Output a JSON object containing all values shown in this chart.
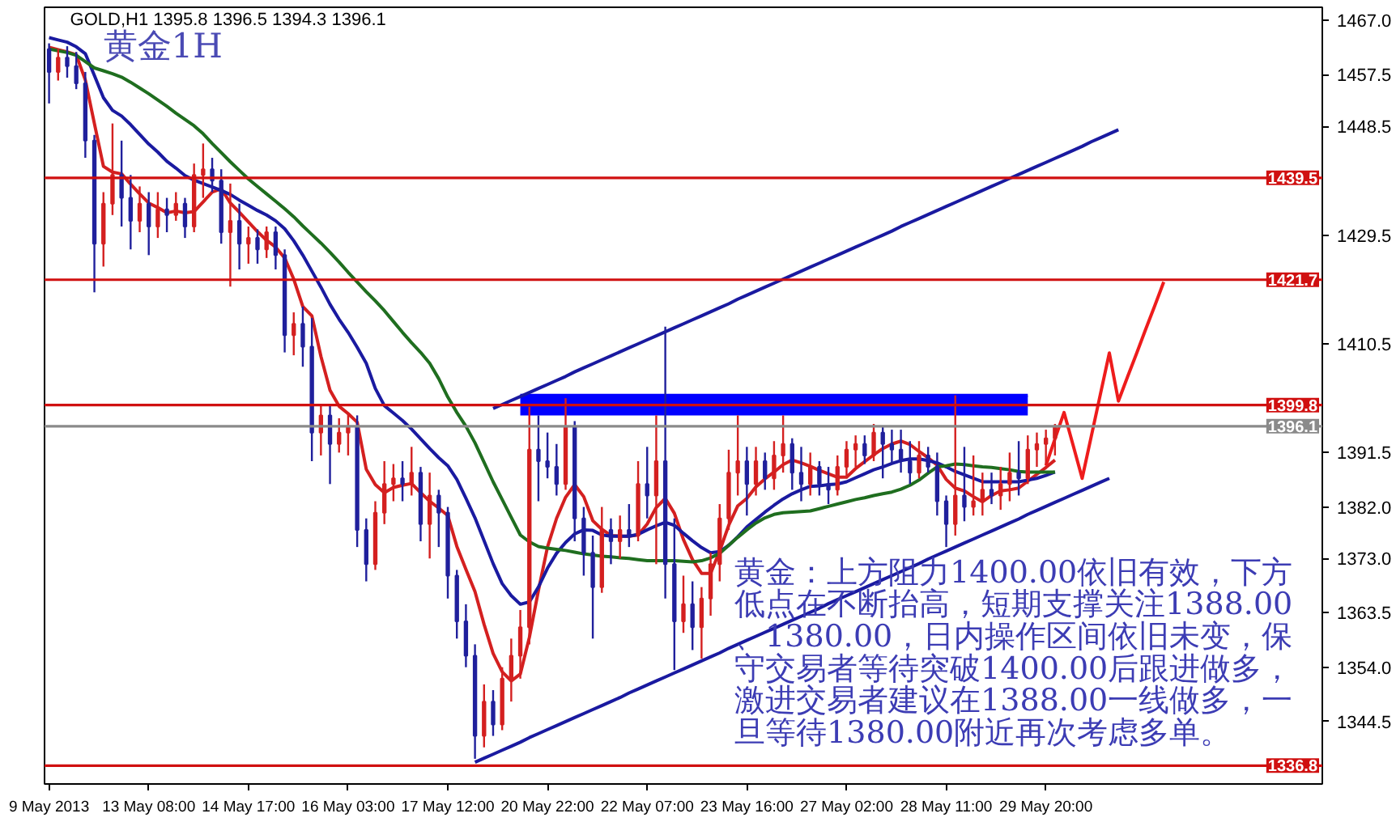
{
  "chart_data": {
    "type": "candlestick",
    "title": "黄金1H",
    "subtitle": "GOLD,H1 1395.8 1396.5 1394.3 1396.1",
    "categories": [
      "9 May 2013",
      null,
      null,
      null,
      null,
      null,
      null,
      null,
      null,
      null,
      null,
      "13 May 08:00",
      null,
      null,
      null,
      null,
      null,
      null,
      null,
      null,
      null,
      null,
      "14 May 17:00",
      null,
      null,
      null,
      null,
      null,
      null,
      null,
      null,
      null,
      null,
      "16 May 03:00",
      null,
      null,
      null,
      null,
      null,
      null,
      null,
      null,
      null,
      null,
      "17 May 12:00",
      null,
      null,
      null,
      null,
      null,
      null,
      null,
      null,
      null,
      null,
      "20 May 22:00",
      null,
      null,
      null,
      null,
      null,
      null,
      null,
      null,
      null,
      null,
      "22 May 07:00",
      null,
      null,
      null,
      null,
      null,
      null,
      null,
      null,
      null,
      null,
      "23 May 16:00",
      null,
      null,
      null,
      null,
      null,
      null,
      null,
      null,
      null,
      null,
      "27 May 02:00",
      null,
      null,
      null,
      null,
      null,
      null,
      null,
      null,
      null,
      null,
      "28 May 11:00",
      null,
      null,
      null,
      null,
      null,
      null,
      null,
      null,
      null,
      null,
      "29 May 20:00",
      null,
      null,
      null,
      null,
      null,
      null,
      null,
      null,
      null,
      null,
      null,
      null,
      null,
      null,
      null,
      null,
      null,
      null,
      null,
      null,
      null,
      null,
      null,
      null,
      null,
      null,
      null,
      null,
      null,
      null
    ],
    "ohlc": [
      [
        1462,
        1463,
        1452.5,
        1458
      ],
      [
        1458,
        1462,
        1456.5,
        1460.5
      ],
      [
        1460.5,
        1462.5,
        1457,
        1459
      ],
      [
        1459,
        1461.5,
        1455,
        1456
      ],
      [
        1456,
        1458,
        1443,
        1446
      ],
      [
        1446,
        1447,
        1419.5,
        1428
      ],
      [
        1428,
        1437,
        1424,
        1435
      ],
      [
        1435,
        1449,
        1433,
        1440
      ],
      [
        1440,
        1446,
        1431,
        1436
      ],
      [
        1436,
        1440,
        1427,
        1432
      ],
      [
        1432,
        1438,
        1430,
        1435
      ],
      [
        1435,
        1437,
        1426,
        1431
      ],
      [
        1431,
        1437,
        1429,
        1434
      ],
      [
        1434,
        1436,
        1430,
        1433
      ],
      [
        1433,
        1437,
        1432,
        1435
      ],
      [
        1435,
        1436,
        1429,
        1431
      ],
      [
        1431,
        1442,
        1430,
        1440
      ],
      [
        1440,
        1445.5,
        1436,
        1441
      ],
      [
        1441,
        1443,
        1437,
        1439
      ],
      [
        1439,
        1441,
        1428,
        1430
      ],
      [
        1430,
        1438.5,
        1420.5,
        1432
      ],
      [
        1432,
        1435,
        1423.5,
        1428
      ],
      [
        1428,
        1431,
        1424.5,
        1429
      ],
      [
        1429,
        1430.5,
        1424.5,
        1427
      ],
      [
        1427,
        1431,
        1425.5,
        1430
      ],
      [
        1430,
        1431,
        1423.5,
        1426
      ],
      [
        1426,
        1427,
        1409,
        1412
      ],
      [
        1412,
        1416,
        1408.5,
        1414
      ],
      [
        1414,
        1417,
        1406.5,
        1410
      ],
      [
        1410,
        1415,
        1390,
        1395
      ],
      [
        1395,
        1400,
        1391,
        1398
      ],
      [
        1398,
        1400,
        1386,
        1393
      ],
      [
        1393,
        1397.5,
        1391.5,
        1395
      ],
      [
        1395,
        1398.5,
        1391,
        1396
      ],
      [
        1396,
        1398,
        1375,
        1378
      ],
      [
        1378,
        1380,
        1369,
        1372
      ],
      [
        1372,
        1383,
        1371,
        1381
      ],
      [
        1381,
        1390,
        1379,
        1386
      ],
      [
        1386,
        1389.5,
        1383,
        1387
      ],
      [
        1387,
        1390,
        1383,
        1386
      ],
      [
        1386,
        1392.5,
        1384,
        1388
      ],
      [
        1388,
        1389,
        1376,
        1379
      ],
      [
        1379,
        1388,
        1373,
        1384
      ],
      [
        1384,
        1385,
        1375,
        1381
      ],
      [
        1381,
        1382,
        1366,
        1370
      ],
      [
        1370,
        1371,
        1359,
        1362
      ],
      [
        1362,
        1365,
        1354,
        1356
      ],
      [
        1356,
        1358,
        1338,
        1342
      ],
      [
        1342,
        1351,
        1340,
        1348
      ],
      [
        1348,
        1350,
        1342,
        1344
      ],
      [
        1344,
        1354,
        1343,
        1352
      ],
      [
        1352,
        1359,
        1348,
        1356
      ],
      [
        1356,
        1364,
        1352,
        1361
      ],
      [
        1361,
        1399.5,
        1358,
        1392
      ],
      [
        1392,
        1398,
        1383,
        1390
      ],
      [
        1390,
        1395,
        1387,
        1389
      ],
      [
        1389,
        1393,
        1384,
        1386
      ],
      [
        1386,
        1401,
        1385,
        1396
      ],
      [
        1396,
        1397,
        1376,
        1380
      ],
      [
        1380,
        1382,
        1370,
        1374
      ],
      [
        1374,
        1377,
        1359,
        1368
      ],
      [
        1368,
        1382,
        1367,
        1378
      ],
      [
        1378,
        1380,
        1372,
        1376
      ],
      [
        1376,
        1380.5,
        1373,
        1378
      ],
      [
        1378,
        1382.5,
        1375,
        1377
      ],
      [
        1377,
        1390,
        1376,
        1386
      ],
      [
        1386,
        1392.5,
        1380,
        1384
      ],
      [
        1384,
        1398,
        1372,
        1390
      ],
      [
        1390,
        1413.5,
        1366,
        1372
      ],
      [
        1372,
        1380,
        1353.5,
        1362
      ],
      [
        1362,
        1370,
        1360,
        1365
      ],
      [
        1365,
        1369,
        1357,
        1361
      ],
      [
        1361,
        1368,
        1355.5,
        1366
      ],
      [
        1366,
        1374,
        1363,
        1372
      ],
      [
        1372,
        1382.5,
        1369,
        1380
      ],
      [
        1380,
        1392,
        1378,
        1388
      ],
      [
        1388,
        1398,
        1384,
        1390
      ],
      [
        1390,
        1392.5,
        1380.5,
        1386
      ],
      [
        1386,
        1392.5,
        1384,
        1390
      ],
      [
        1390,
        1391.5,
        1385,
        1387
      ],
      [
        1387,
        1393.5,
        1385,
        1391
      ],
      [
        1391,
        1398,
        1388,
        1393
      ],
      [
        1393,
        1394,
        1385,
        1388
      ],
      [
        1388,
        1392.5,
        1383,
        1386
      ],
      [
        1386,
        1391.5,
        1384,
        1389
      ],
      [
        1389,
        1390,
        1384,
        1386
      ],
      [
        1386,
        1389,
        1382.5,
        1385
      ],
      [
        1385,
        1391,
        1384,
        1389
      ],
      [
        1389,
        1393.5,
        1387,
        1392
      ],
      [
        1392,
        1394.5,
        1389,
        1393
      ],
      [
        1393,
        1394.5,
        1389.5,
        1391
      ],
      [
        1391,
        1396.5,
        1390,
        1395
      ],
      [
        1395,
        1396,
        1387,
        1393
      ],
      [
        1393,
        1395.5,
        1389.5,
        1392
      ],
      [
        1392,
        1395.5,
        1388,
        1390
      ],
      [
        1390,
        1393.5,
        1386,
        1388
      ],
      [
        1388,
        1393.5,
        1387,
        1391
      ],
      [
        1391,
        1392.5,
        1388,
        1389
      ],
      [
        1389,
        1391.5,
        1380.5,
        1383
      ],
      [
        1383,
        1384,
        1375,
        1379
      ],
      [
        1379,
        1401.5,
        1377,
        1384
      ],
      [
        1384,
        1392.5,
        1379.5,
        1382
      ],
      [
        1382,
        1391,
        1380.5,
        1383
      ],
      [
        1383,
        1388,
        1380.5,
        1385
      ],
      [
        1385,
        1388,
        1382.5,
        1384
      ],
      [
        1384,
        1389,
        1381.5,
        1386
      ],
      [
        1386,
        1391.5,
        1383,
        1388
      ],
      [
        1388,
        1393.5,
        1384,
        1387
      ],
      [
        1387,
        1394.5,
        1386,
        1392
      ],
      [
        1392,
        1395,
        1389,
        1393
      ],
      [
        1393,
        1395.5,
        1389.5,
        1394
      ],
      [
        1394,
        1396.5,
        1391,
        1396.1
      ],
      null,
      null,
      null,
      null,
      null,
      null,
      null,
      null,
      null,
      null,
      null,
      null,
      null,
      null,
      null,
      null,
      null,
      null,
      null,
      null,
      null,
      null,
      null,
      null,
      null,
      null,
      null,
      null,
      null
    ],
    "colors": [
      "#20209c",
      "#d42020",
      "#20209c",
      "#20209c",
      "#20209c",
      "#20209c",
      "#d42020",
      "#d42020",
      "#20209c",
      "#20209c",
      "#d42020",
      "#20209c",
      "#d42020",
      "#20209c",
      "#d42020",
      "#20209c",
      "#d42020",
      "#d42020",
      "#20209c",
      "#20209c",
      "#d42020",
      "#20209c",
      "#d42020",
      "#20209c",
      "#d42020",
      "#20209c",
      "#20209c",
      "#d42020",
      "#20209c",
      "#20209c",
      "#d42020",
      "#20209c",
      "#d42020",
      "#d42020",
      "#20209c",
      "#20209c",
      "#d42020",
      "#d42020",
      "#d42020",
      "#20209c",
      "#d42020",
      "#20209c",
      "#d42020",
      "#20209c",
      "#20209c",
      "#20209c",
      "#20209c",
      "#20209c",
      "#d42020",
      "#20209c",
      "#d42020",
      "#d42020",
      "#d42020",
      "#d42020",
      "#20209c",
      "#20209c",
      "#20209c",
      "#d42020",
      "#20209c",
      "#20209c",
      "#20209c",
      "#d42020",
      "#20209c",
      "#d42020",
      "#20209c",
      "#d42020",
      "#20209c",
      "#d42020",
      "#20209c",
      "#20209c",
      "#d42020",
      "#20209c",
      "#d42020",
      "#d42020",
      "#d42020",
      "#d42020",
      "#d42020",
      "#20209c",
      "#d42020",
      "#20209c",
      "#d42020",
      "#d42020",
      "#20209c",
      "#20209c",
      "#d42020",
      "#20209c",
      "#20209c",
      "#d42020",
      "#d42020",
      "#d42020",
      "#20209c",
      "#d42020",
      "#20209c",
      "#20209c",
      "#20209c",
      "#20209c",
      "#d42020",
      "#20209c",
      "#20209c",
      "#20209c",
      "#d42020",
      "#20209c",
      "#d42020",
      "#d42020",
      "#20209c",
      "#d42020",
      "#d42020",
      "#20209c",
      "#d42020",
      "#d42020",
      "#d42020",
      "#d42020",
      null,
      null,
      null,
      null,
      null,
      null,
      null,
      null,
      null,
      null,
      null,
      null,
      null,
      null,
      null,
      null,
      null,
      null,
      null,
      null,
      null,
      null,
      null,
      null,
      null,
      null,
      null,
      null,
      null
    ],
    "ylim": [
      1333.6,
      1469.3
    ],
    "yticks": [
      {
        "value": 1467,
        "label": "1467.0"
      },
      1457.5,
      1448.5,
      1429.5,
      1410.5,
      1391.5,
      {
        "value": 1382,
        "label": "1382.0"
      },
      {
        "value": 1373,
        "label": "1373.0"
      },
      1363.5,
      {
        "value": 1354,
        "label": "1354.0"
      },
      1344.5
    ],
    "series": [
      {
        "type": "line",
        "color": "#0000ff",
        "values": [
          null,
          null,
          null,
          null,
          null,
          null,
          null,
          null,
          null,
          null,
          null,
          null,
          null,
          null,
          null,
          null,
          null,
          null,
          null,
          null,
          null,
          null,
          null,
          null,
          null,
          null,
          null,
          null,
          null,
          null,
          null,
          null,
          null,
          null,
          null,
          null,
          null,
          null,
          null,
          null,
          null,
          null,
          null,
          null,
          null,
          null,
          null,
          null,
          null,
          null,
          null,
          null,
          1401.5,
          1401.5,
          1401.5,
          1401.5,
          1401.5,
          1401.5,
          1401.5,
          1401.5,
          1401.5,
          1401.5,
          1401.5,
          1401.5,
          1401.5,
          1401.5,
          1401.5,
          1401.5,
          1401.5,
          1401.5,
          1401.5,
          1401.5,
          1401.5,
          1401.5,
          1401.5,
          1401.5,
          1401.5,
          1401.5,
          1401.5,
          1401.5,
          1401.5,
          1401.5,
          1401.5,
          1401.5,
          1401.5,
          1401.5,
          1401.5,
          1401.5,
          1401.5,
          1401.5,
          1401.5,
          1401.5,
          1401.5,
          1401.5,
          1401.5,
          1401.5,
          1401.5,
          1401.5,
          1401.5,
          1401.5,
          1401.5,
          1401.5,
          1401.5,
          1401.5,
          1401.5,
          1401.5,
          1401.5,
          1401.5,
          1401.5,
          null,
          null,
          null,
          null,
          null,
          null,
          null,
          null,
          null,
          null,
          null,
          null,
          null,
          null,
          null,
          null,
          null,
          null,
          null,
          null,
          null,
          null,
          null,
          null,
          null,
          null,
          null,
          null,
          null,
          null,
          null,
          null
        ],
        "lower": [
          null,
          null,
          null,
          null,
          null,
          null,
          null,
          null,
          null,
          null,
          null,
          null,
          null,
          null,
          null,
          null,
          null,
          null,
          null,
          null,
          null,
          null,
          null,
          null,
          null,
          null,
          null,
          null,
          null,
          null,
          null,
          null,
          null,
          null,
          null,
          null,
          null,
          null,
          null,
          null,
          null,
          null,
          null,
          null,
          null,
          null,
          null,
          null,
          null,
          null,
          null,
          null,
          1398,
          1398,
          1398,
          1398,
          1398,
          1398,
          1398,
          1398,
          1398,
          1398,
          1398,
          1398,
          1398,
          1398,
          1398,
          1398,
          1398,
          1398,
          1398,
          1398,
          1398,
          1398,
          1398,
          1398,
          1398,
          1398,
          1398,
          1398,
          1398,
          1398,
          1398,
          1398,
          1398,
          1398,
          1398,
          1398,
          1398,
          1398,
          1398,
          1398,
          1398,
          1398,
          1398,
          1398,
          1398,
          1398,
          1398,
          1398,
          1398,
          1398,
          1398,
          1398,
          1398,
          1398,
          1398,
          1398,
          1398,
          null,
          null,
          null,
          null,
          null,
          null,
          null,
          null,
          null,
          null,
          null,
          null,
          null,
          null,
          null,
          null,
          null,
          null,
          null,
          null,
          null,
          null,
          null,
          null,
          null,
          null,
          null,
          null,
          null,
          null,
          null,
          null
        ],
        "upper": [
          null,
          null,
          null,
          null,
          null,
          null,
          null,
          null,
          null,
          null,
          null,
          null,
          null,
          null,
          null,
          null,
          null,
          null,
          null,
          null,
          null,
          null,
          null,
          null,
          null,
          null,
          null,
          null,
          null,
          null,
          null,
          null,
          null,
          null,
          null,
          null,
          null,
          null,
          null,
          null,
          null,
          null,
          null,
          null,
          null,
          null,
          null,
          null,
          null,
          null,
          null,
          null,
          1401.5,
          1401.5,
          1401.5,
          1401.5,
          1401.5,
          1401.5,
          1401.5,
          1401.5,
          1401.5,
          1401.5,
          1401.5,
          1401.5,
          1401.5,
          1401.5,
          1401.5,
          1401.5,
          1401.5,
          1401.5,
          1401.5,
          1401.5,
          1401.5,
          1401.5,
          1401.5,
          1401.5,
          1401.5,
          1401.5,
          1401.5,
          1401.5,
          1401.5,
          1401.5,
          1401.5,
          1401.5,
          1401.5,
          1401.5,
          1401.5,
          1401.5,
          1401.5,
          1401.5,
          1401.5,
          1401.5,
          1401.5,
          1401.5,
          1401.5,
          1401.5,
          1401.5,
          1401.5,
          1401.5,
          1401.5,
          1401.5,
          1401.5,
          1401.5,
          1401.5,
          1401.5,
          1401.5,
          1401.5,
          1401.5,
          1401.5,
          null,
          null,
          null,
          null,
          null,
          null,
          null,
          null,
          null,
          null,
          null,
          null,
          null,
          null,
          null,
          null,
          null,
          null,
          null,
          null,
          null,
          null,
          null,
          null,
          null,
          null,
          null,
          null,
          null,
          null,
          null,
          null
        ]
      },
      {
        "type": "line",
        "color": "#d42020",
        "values": [
          1462.3,
          1461.9,
          1461.5,
          1461.0,
          1456.6,
          1449.0,
          1441.5,
          1440.5,
          1440.2,
          1438.4,
          1436.7,
          1435.1,
          1434.3,
          1433.4,
          1433.7,
          1433.4,
          1433.6,
          1435.3,
          1437.0,
          1437.6,
          1435.1,
          1433.5,
          1431.8,
          1430.1,
          1428.6,
          1427.4,
          1425.5,
          1421.8,
          1417.0,
          1415.4,
          1408.3,
          1402.4,
          1399.6,
          1398.3,
          1396.8,
          1388.6,
          1385.9,
          1384.5,
          1385.4,
          1385.8,
          1386.1,
          1384.5,
          1383.0,
          1381.8,
          1380.5,
          1375.1,
          1371.1,
          1367.2,
          1361.5,
          1356.4,
          1353.2,
          1351.6,
          1352.8,
          1359.2,
          1367.4,
          1375.0,
          1380.0,
          1383.7,
          1385.9,
          1383.8,
          1379.6,
          1378.1,
          1377.0,
          1376.9,
          1376.9,
          1377.1,
          1379.0,
          1381.9,
          1383.5,
          1380.9,
          1376.3,
          1372.8,
          1370.4,
          1370.4,
          1374.3,
          1378.8,
          1382.2,
          1383.5,
          1385.5,
          1386.9,
          1388.1,
          1389.4,
          1390.2,
          1389.7,
          1389.1,
          1388.4,
          1387.8,
          1387.2,
          1387.2,
          1388.7,
          1389.9,
          1391.1,
          1392.2,
          1393.0,
          1393.5,
          1392.9,
          1391.7,
          1390.6,
          1389.3,
          1386.8,
          1385.3,
          1384.8,
          1383.8,
          1382.9,
          1384.0,
          1384.8,
          1385.0,
          1385.3,
          1386.5,
          1387.7,
          1388.9,
          1390.2,
          null,
          null,
          null,
          null,
          null,
          null,
          null,
          null,
          null,
          null,
          null,
          null,
          null,
          null,
          null,
          null,
          null,
          null,
          null,
          null,
          null,
          null,
          null,
          null,
          null,
          null,
          null,
          null,
          null
        ]
      },
      {
        "type": "line",
        "color": "#1a1aa0",
        "values": [
          1464.0,
          1463.6,
          1463.2,
          1462.4,
          1461.2,
          1457.4,
          1453.5,
          1451.3,
          1450.3,
          1448.8,
          1447.1,
          1445.4,
          1444.0,
          1442.4,
          1441.2,
          1439.9,
          1439.1,
          1438.5,
          1437.9,
          1437.3,
          1436.6,
          1435.6,
          1434.7,
          1433.8,
          1433.0,
          1432.0,
          1430.6,
          1428.5,
          1426.0,
          1423.2,
          1420.4,
          1417.4,
          1414.8,
          1412.5,
          1409.9,
          1407.1,
          1402.7,
          1399.7,
          1398.4,
          1397.1,
          1395.6,
          1393.9,
          1392.2,
          1390.6,
          1389.2,
          1386.8,
          1383.5,
          1380.1,
          1376.1,
          1372.1,
          1368.6,
          1366.5,
          1365.0,
          1365.4,
          1368.0,
          1371.3,
          1373.9,
          1375.8,
          1377.3,
          1378.0,
          1377.9,
          1377.1,
          1376.9,
          1376.9,
          1376.9,
          1377.2,
          1378.0,
          1378.7,
          1379.3,
          1378.8,
          1377.4,
          1376.1,
          1374.9,
          1374.0,
          1374.2,
          1375.3,
          1376.8,
          1378.5,
          1379.8,
          1381.1,
          1382.3,
          1383.4,
          1384.3,
          1385.0,
          1385.6,
          1385.7,
          1385.9,
          1386.0,
          1386.4,
          1387.1,
          1387.8,
          1388.5,
          1389.0,
          1389.6,
          1390.1,
          1390.4,
          1390.4,
          1390.1,
          1389.7,
          1389.0,
          1388.2,
          1387.6,
          1387.0,
          1386.4,
          1386.4,
          1386.4,
          1386.4,
          1386.4,
          1386.7,
          1387.0,
          1387.5,
          1388.1,
          null,
          null,
          null,
          null,
          null,
          null,
          null,
          null,
          null,
          null,
          null,
          null,
          null,
          null,
          null,
          null,
          null,
          null,
          null,
          null,
          null,
          null,
          null,
          null,
          null,
          null,
          null,
          null,
          null
        ]
      },
      {
        "type": "line",
        "color": "#1f6e1f",
        "values": [
          1462.0,
          1461.7,
          1461.4,
          1460.9,
          1459.8,
          1458.7,
          1458.2,
          1457.7,
          1457.1,
          1456.2,
          1455.2,
          1454.2,
          1453.1,
          1452.0,
          1450.8,
          1449.7,
          1448.6,
          1447.2,
          1445.5,
          1443.9,
          1442.3,
          1440.8,
          1439.3,
          1438.0,
          1436.7,
          1435.4,
          1434.1,
          1432.7,
          1431.1,
          1429.6,
          1428.1,
          1426.5,
          1424.8,
          1423.0,
          1421.3,
          1419.6,
          1418.0,
          1416.3,
          1414.4,
          1412.5,
          1410.7,
          1409.0,
          1407.1,
          1404.4,
          1401.2,
          1398.5,
          1396.1,
          1393.2,
          1389.8,
          1386.4,
          1383.3,
          1380.2,
          1377.1,
          1375.9,
          1375.1,
          1374.8,
          1374.6,
          1374.4,
          1374.1,
          1373.8,
          1373.6,
          1373.4,
          1373.3,
          1373.1,
          1373.0,
          1372.8,
          1372.6,
          1372.6,
          1372.6,
          1372.6,
          1372.5,
          1372.4,
          1372.6,
          1373.1,
          1373.9,
          1375.3,
          1376.7,
          1378.0,
          1379.2,
          1380.1,
          1380.7,
          1381.0,
          1381.1,
          1381.2,
          1381.3,
          1381.7,
          1382.1,
          1382.5,
          1382.9,
          1383.3,
          1383.6,
          1384.0,
          1384.3,
          1384.6,
          1385.1,
          1385.8,
          1386.7,
          1387.9,
          1389.0,
          1389.2,
          1389.5,
          1389.4,
          1389.2,
          1389.0,
          1388.9,
          1388.7,
          1388.5,
          1388.2,
          1388.1,
          1388.1,
          1388.1,
          1388.1,
          null,
          null,
          null,
          null,
          null,
          null,
          null,
          null,
          null,
          null,
          null,
          null,
          null,
          null,
          null,
          null,
          null,
          null,
          null,
          null,
          null,
          null,
          null,
          null,
          null,
          null,
          null,
          null,
          null
        ]
      },
      {
        "type": "line",
        "color": "#1a1aa0",
        "values": [
          null,
          null,
          null,
          null,
          null,
          null,
          null,
          null,
          null,
          null,
          null,
          null,
          null,
          null,
          null,
          null,
          null,
          null,
          null,
          null,
          null,
          null,
          null,
          null,
          null,
          null,
          null,
          null,
          null,
          null,
          null,
          null,
          null,
          null,
          null,
          null,
          null,
          null,
          null,
          null,
          null,
          null,
          null,
          null,
          null,
          null,
          null,
          null,
          null,
          1399.2,
          1399.9,
          1400.6,
          1401.3,
          1402.0,
          1402.7,
          1403.4,
          1404.1,
          1404.8,
          1405.6,
          1406.3,
          1407.0,
          1407.7,
          1408.4,
          1409.1,
          1409.8,
          1410.5,
          1411.2,
          1411.9,
          1412.6,
          1413.3,
          1414.0,
          1414.7,
          1415.4,
          1416.1,
          1416.8,
          1417.5,
          1418.3,
          1419.0,
          1419.7,
          1420.4,
          1421.1,
          1421.8,
          1422.5,
          1423.2,
          1423.9,
          1424.6,
          1425.3,
          1426.0,
          1426.7,
          1427.4,
          1428.1,
          1428.8,
          1429.5,
          1430.2,
          1431.0,
          1431.7,
          1432.4,
          1433.1,
          1433.8,
          1434.5,
          1435.2,
          1435.9,
          1436.6,
          1437.3,
          1438.0,
          1438.7,
          1439.4,
          1440.1,
          1440.8,
          1441.5,
          1442.2,
          1442.9,
          1443.6,
          1444.3,
          1445.0,
          1445.8,
          1446.5,
          1447.2,
          1447.9,
          null,
          null,
          null,
          null,
          null,
          null,
          null,
          null,
          null,
          null,
          null,
          null,
          null,
          null,
          null,
          null,
          null,
          null,
          null,
          null,
          null,
          null
        ]
      },
      {
        "type": "line",
        "color": "#1a1aa0",
        "values": [
          null,
          null,
          null,
          null,
          null,
          null,
          null,
          null,
          null,
          null,
          null,
          null,
          null,
          null,
          null,
          null,
          null,
          null,
          null,
          null,
          null,
          null,
          null,
          null,
          null,
          null,
          null,
          null,
          null,
          null,
          null,
          null,
          null,
          null,
          null,
          null,
          null,
          null,
          null,
          null,
          null,
          null,
          null,
          null,
          null,
          null,
          null,
          1337.4,
          1338.1,
          1338.8,
          1339.5,
          1340.2,
          1340.9,
          1341.7,
          1342.4,
          1343.1,
          1343.8,
          1344.5,
          1345.2,
          1345.9,
          1346.6,
          1347.3,
          1348.0,
          1348.7,
          1349.5,
          1350.2,
          1350.9,
          1351.6,
          1352.3,
          1353.0,
          1353.7,
          1354.4,
          1355.1,
          1355.8,
          1356.5,
          1357.3,
          1358.0,
          1358.7,
          1359.4,
          1360.1,
          1360.8,
          1361.5,
          1362.2,
          1362.9,
          1363.6,
          1364.3,
          1365.1,
          1365.8,
          1366.5,
          1367.2,
          1367.9,
          1368.6,
          1369.3,
          1370.0,
          1370.7,
          1371.4,
          1372.1,
          1372.9,
          1373.6,
          1374.3,
          1375.0,
          1375.7,
          1376.4,
          1377.1,
          1377.8,
          1378.5,
          1379.2,
          1379.9,
          1380.7,
          1381.4,
          1382.1,
          1382.8,
          1383.5,
          1384.2,
          1384.9,
          1385.6,
          1386.3,
          1387.0,
          null,
          null,
          null,
          null,
          null,
          null,
          null,
          null,
          null,
          null,
          null,
          null,
          null,
          null,
          null,
          null,
          null,
          null,
          null,
          null,
          null,
          null,
          null
        ]
      },
      {
        "type": "line",
        "color": "#ee1c1c",
        "values": [
          null,
          null,
          null,
          null,
          null,
          null,
          null,
          null,
          null,
          null,
          null,
          null,
          null,
          null,
          null,
          null,
          null,
          null,
          null,
          null,
          null,
          null,
          null,
          null,
          null,
          null,
          null,
          null,
          null,
          null,
          null,
          null,
          null,
          null,
          null,
          null,
          null,
          null,
          null,
          null,
          null,
          null,
          null,
          null,
          null,
          null,
          null,
          null,
          null,
          null,
          null,
          null,
          null,
          null,
          null,
          null,
          null,
          null,
          null,
          null,
          null,
          null,
          null,
          null,
          null,
          null,
          null,
          null,
          null,
          null,
          null,
          null,
          null,
          null,
          null,
          null,
          null,
          null,
          null,
          null,
          null,
          null,
          null,
          null,
          null,
          null,
          null,
          null,
          null,
          null,
          null,
          null,
          null,
          null,
          null,
          null,
          null,
          null,
          null,
          null,
          null,
          null,
          null,
          null,
          null,
          null,
          null,
          null,
          null,
          null,
          1389.2,
          1393.9,
          1398.5,
          1392.8,
          1387.0,
          1394.3,
          1401.6,
          1408.9,
          1400.5,
          1404.7,
          1408.8,
          1413.0,
          1417.1,
          1421.3,
          null,
          null,
          null,
          null,
          null,
          null,
          null,
          null,
          null,
          null,
          null,
          null,
          null,
          null,
          null,
          null,
          null
        ]
      }
    ],
    "ref_lines": [
      {
        "axis": "y",
        "value": 1439.5,
        "label": "1439.5",
        "color": "#d01010"
      },
      {
        "axis": "y",
        "value": 1421.7,
        "label": "1421.7",
        "color": "#d01010"
      },
      {
        "axis": "y",
        "value": 1399.8,
        "label": "1399.8",
        "color": "#d01010"
      },
      {
        "axis": "y",
        "value": 1396.1,
        "label": "1396.1",
        "color": "#8a8a8a"
      },
      {
        "axis": "y",
        "value": 1336.8,
        "label": "1336.8",
        "color": "#d01010"
      }
    ],
    "annotations": [
      "黄金：上方阻力1400.00依旧有效，下方低点在不断抬高，短期支撑关注1388.00、1380.00，日内操作区间依旧未变，保守交易者等待突破1400.00后跟进做多，激进交易者建议在1388.00一线做多，一旦等待1380.00附近再次考虑多单。"
    ]
  }
}
